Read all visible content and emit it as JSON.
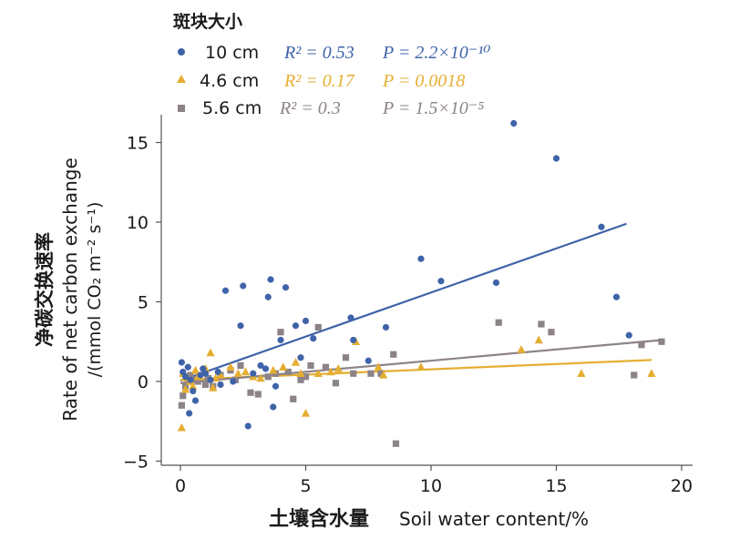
{
  "chart_data": {
    "type": "scatter",
    "legend_title": "斑块大小",
    "legend_position": "top-left",
    "xlabel_cn": "土壤含水量",
    "xlabel_en": "Soil water content/%",
    "ylabel_cn": "净碳交换速率",
    "ylabel_en_line1": "Rate of net carbon exchange",
    "ylabel_en_line2": "/(mmol CO₂ m⁻² s⁻¹)",
    "xlim": [
      -1,
      20
    ],
    "ylim": [
      -5,
      16.5
    ],
    "x_ticks": [
      0,
      5,
      10,
      15,
      20
    ],
    "x_tick_labels": [
      "0",
      "5",
      "10",
      "15",
      "20"
    ],
    "y_ticks": [
      -5,
      0,
      5,
      10,
      15
    ],
    "y_tick_labels": [
      "−5",
      "0",
      "5",
      "10",
      "15"
    ],
    "grid": false,
    "series": [
      {
        "name": "10 cm",
        "color": "#3F63A8",
        "marker": "circle",
        "r2_label": "R² = 0.53",
        "p_label": "P = 2.2×10⁻¹⁰",
        "fit": [
          [
            0,
            0.05
          ],
          [
            17.8,
            9.9
          ]
        ],
        "points": [
          [
            0.05,
            1.2
          ],
          [
            0.1,
            0.6
          ],
          [
            0.2,
            0.3
          ],
          [
            0.3,
            0.9
          ],
          [
            0.4,
            0.1
          ],
          [
            0.5,
            -0.6
          ],
          [
            0.6,
            -1.2
          ],
          [
            0.35,
            -2.0
          ],
          [
            0.8,
            0.4
          ],
          [
            1.0,
            0.5
          ],
          [
            1.2,
            0.1
          ],
          [
            1.5,
            0.6
          ],
          [
            1.8,
            5.7
          ],
          [
            2.4,
            3.5
          ],
          [
            2.5,
            6.0
          ],
          [
            2.7,
            -2.8
          ],
          [
            3.2,
            1.0
          ],
          [
            3.5,
            5.3
          ],
          [
            3.6,
            6.4
          ],
          [
            3.7,
            -1.6
          ],
          [
            3.8,
            -0.3
          ],
          [
            4.0,
            2.6
          ],
          [
            4.2,
            5.9
          ],
          [
            4.6,
            3.5
          ],
          [
            4.8,
            1.5
          ],
          [
            5.0,
            3.8
          ],
          [
            5.3,
            2.7
          ],
          [
            6.8,
            4.0
          ],
          [
            6.9,
            2.6
          ],
          [
            7.5,
            1.3
          ],
          [
            8.2,
            3.4
          ],
          [
            9.6,
            7.7
          ],
          [
            10.4,
            6.3
          ],
          [
            12.6,
            6.2
          ],
          [
            13.3,
            16.2
          ],
          [
            15.0,
            14.0
          ],
          [
            16.8,
            9.7
          ],
          [
            17.4,
            5.3
          ],
          [
            17.9,
            2.9
          ],
          [
            2.1,
            0.0
          ],
          [
            2.9,
            0.5
          ],
          [
            3.4,
            0.8
          ],
          [
            1.6,
            -0.2
          ],
          [
            0.9,
            0.8
          ]
        ]
      },
      {
        "name": "4.6 cm",
        "color": "#E5AE32",
        "marker": "triangle",
        "r2_label": "R² = 0.17",
        "p_label": "P = 0.0018",
        "fit": [
          [
            0,
            0.1
          ],
          [
            18.8,
            1.35
          ]
        ],
        "points": [
          [
            0.05,
            -2.9
          ],
          [
            0.1,
            0.5
          ],
          [
            0.2,
            -0.5
          ],
          [
            0.3,
            0.2
          ],
          [
            0.4,
            0.0
          ],
          [
            0.5,
            -0.3
          ],
          [
            0.7,
            0.3
          ],
          [
            1.0,
            0.8
          ],
          [
            1.2,
            1.8
          ],
          [
            1.3,
            -0.4
          ],
          [
            1.6,
            0.4
          ],
          [
            2.0,
            0.9
          ],
          [
            2.3,
            0.5
          ],
          [
            2.6,
            0.6
          ],
          [
            3.2,
            0.2
          ],
          [
            3.7,
            0.7
          ],
          [
            4.6,
            1.2
          ],
          [
            4.8,
            0.5
          ],
          [
            5.0,
            -2.0
          ],
          [
            5.5,
            0.5
          ],
          [
            6.0,
            0.6
          ],
          [
            6.3,
            0.8
          ],
          [
            7.0,
            2.5
          ],
          [
            7.9,
            0.9
          ],
          [
            8.1,
            0.4
          ],
          [
            9.6,
            0.9
          ],
          [
            13.6,
            2.0
          ],
          [
            14.3,
            2.6
          ],
          [
            16.0,
            0.5
          ],
          [
            18.8,
            0.5
          ],
          [
            0.6,
            0.7
          ],
          [
            1.4,
            0.2
          ],
          [
            2.9,
            0.3
          ],
          [
            4.1,
            0.9
          ]
        ]
      },
      {
        "name": "5.6 cm",
        "color": "#8C8388",
        "marker": "square",
        "r2_label": "R² = 0.3",
        "p_label": "P = 1.5×10⁻⁵",
        "fit": [
          [
            0,
            -0.1
          ],
          [
            19.2,
            2.6
          ]
        ],
        "points": [
          [
            0.05,
            -1.5
          ],
          [
            0.1,
            -0.9
          ],
          [
            0.2,
            -0.3
          ],
          [
            0.3,
            0.3
          ],
          [
            0.4,
            0.4
          ],
          [
            0.5,
            0.1
          ],
          [
            0.7,
            0.0
          ],
          [
            1.0,
            -0.2
          ],
          [
            1.3,
            -0.3
          ],
          [
            1.6,
            0.4
          ],
          [
            2.0,
            0.7
          ],
          [
            2.4,
            1.0
          ],
          [
            2.8,
            -0.7
          ],
          [
            3.1,
            -0.8
          ],
          [
            3.5,
            0.3
          ],
          [
            3.8,
            0.5
          ],
          [
            4.0,
            3.1
          ],
          [
            4.5,
            -1.1
          ],
          [
            4.8,
            0.1
          ],
          [
            5.0,
            0.3
          ],
          [
            5.2,
            1.0
          ],
          [
            5.5,
            3.4
          ],
          [
            5.8,
            0.9
          ],
          [
            6.2,
            -0.1
          ],
          [
            6.6,
            1.5
          ],
          [
            6.9,
            0.5
          ],
          [
            7.6,
            0.5
          ],
          [
            8.0,
            0.5
          ],
          [
            8.5,
            1.7
          ],
          [
            8.6,
            -3.9
          ],
          [
            12.7,
            3.7
          ],
          [
            14.4,
            3.6
          ],
          [
            14.8,
            3.1
          ],
          [
            18.1,
            0.4
          ],
          [
            18.4,
            2.3
          ],
          [
            19.2,
            2.5
          ],
          [
            1.1,
            0.2
          ],
          [
            2.2,
            0.1
          ],
          [
            4.3,
            0.6
          ]
        ]
      }
    ]
  }
}
